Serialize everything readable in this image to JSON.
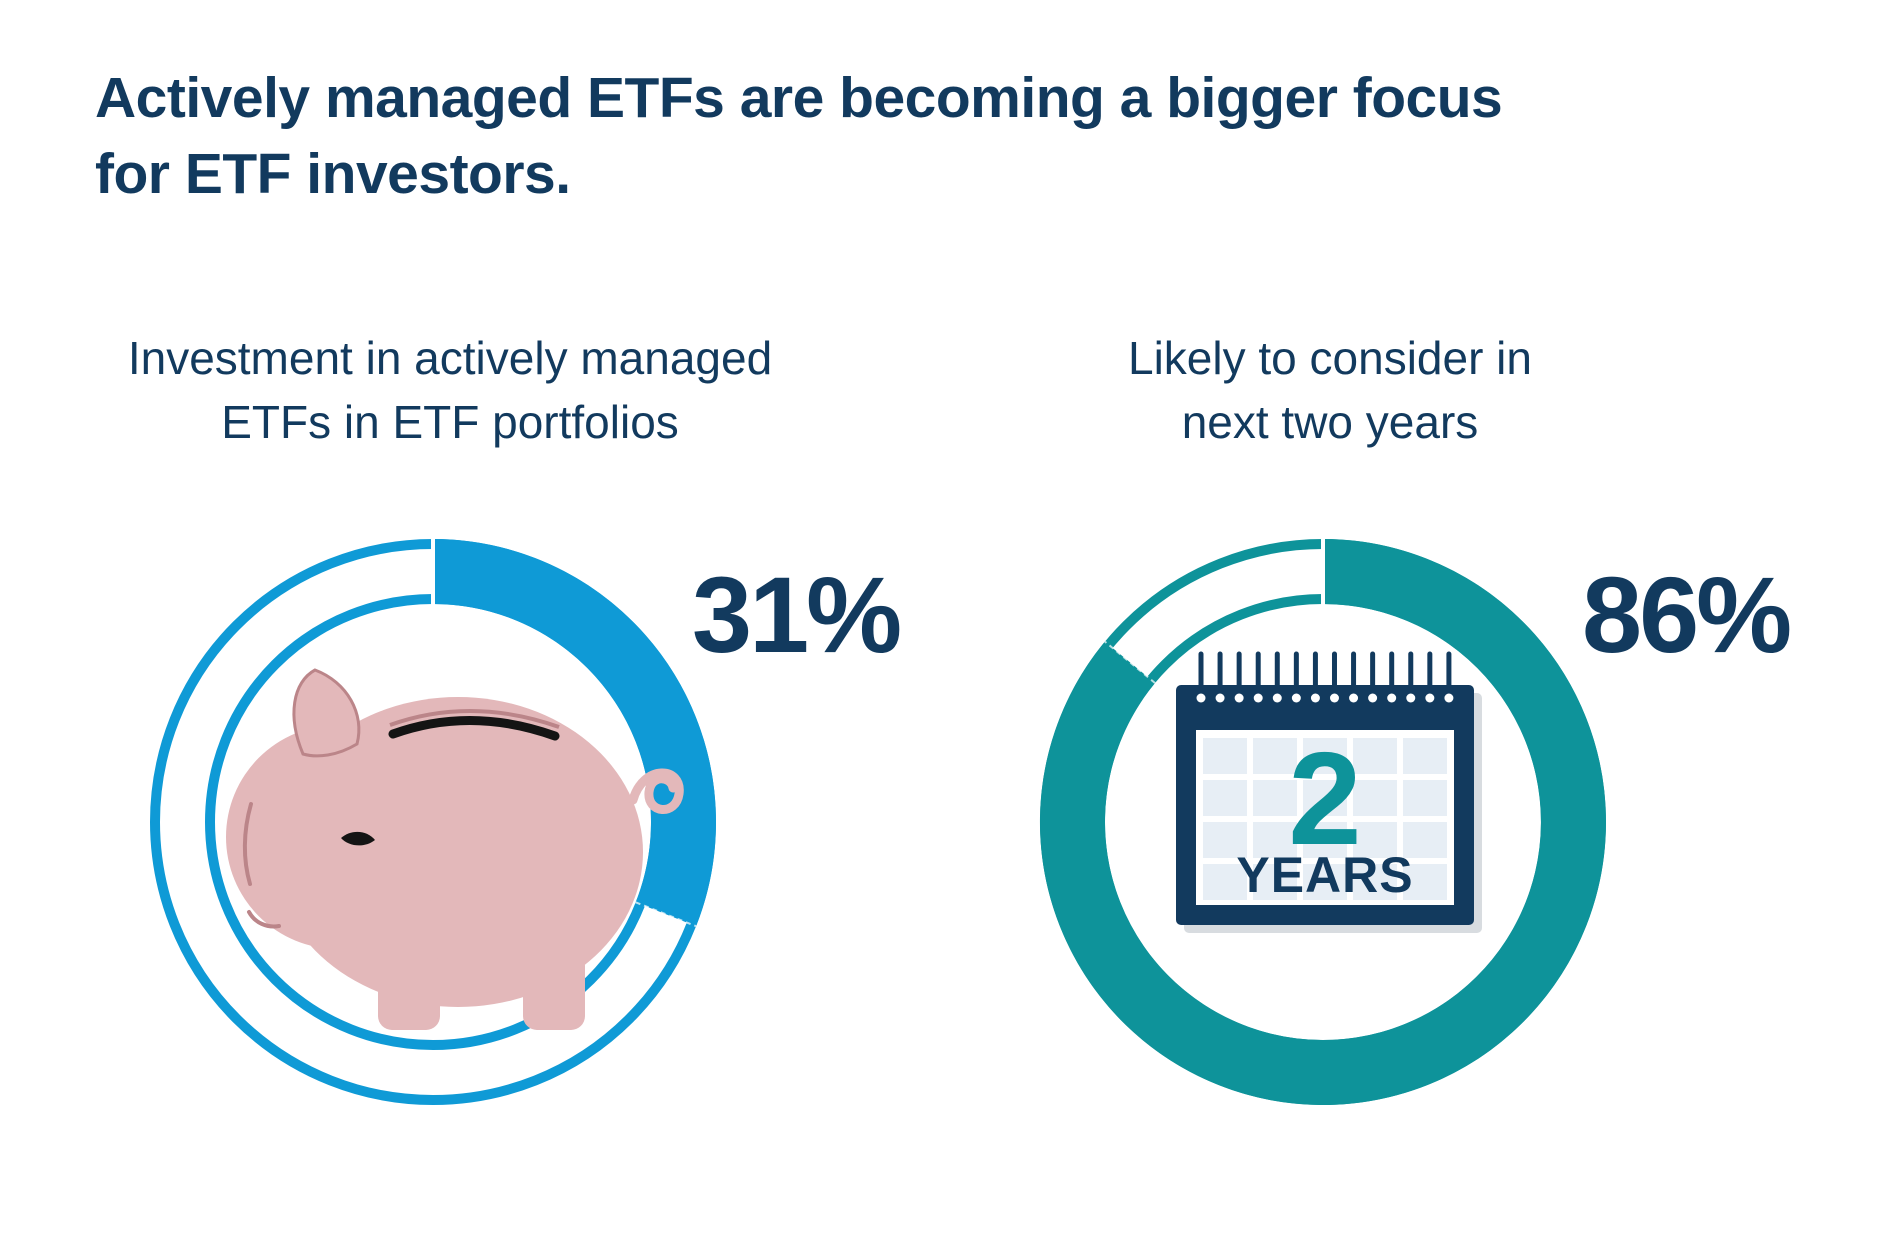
{
  "title_lines": [
    "Actively managed ETFs are becoming a bigger focus",
    "for ETF investors."
  ],
  "colors": {
    "navy": "#123a5e",
    "blue": "#0f9ad6",
    "teal": "#0e939a",
    "pig_pink": "#e3b8ba",
    "pig_line": "#bb8589",
    "ink": "#141414",
    "grid_blue": "#e7eef5",
    "shadow_gray": "#d8dce0"
  },
  "charts": [
    {
      "name": "active-etf-investment",
      "subtitle_lines": [
        "Investment in actively managed",
        "ETFs in ETF portfolios"
      ],
      "percent_label": "31%",
      "icon": "piggy-bank-icon"
    },
    {
      "name": "consider-next-two-years",
      "subtitle_lines": [
        "Likely to consider in",
        "next two years"
      ],
      "percent_label": "86%",
      "icon": "calendar-icon"
    }
  ],
  "calendar": {
    "number": "2",
    "unit": "YEARS"
  },
  "chart_data": [
    {
      "type": "donut",
      "title": "Investment in actively managed ETFs in ETF portfolios",
      "value": 31,
      "unit": "%",
      "color": "#0f9ad6",
      "start_angle_deg": 0,
      "direction": "clockwise",
      "track_style": "thin outline on unfilled 69%"
    },
    {
      "type": "donut",
      "title": "Likely to consider in next two years",
      "value": 86,
      "unit": "%",
      "color": "#0e939a",
      "start_angle_deg": 0,
      "direction": "clockwise",
      "track_style": "thin outline on unfilled 14%"
    }
  ]
}
